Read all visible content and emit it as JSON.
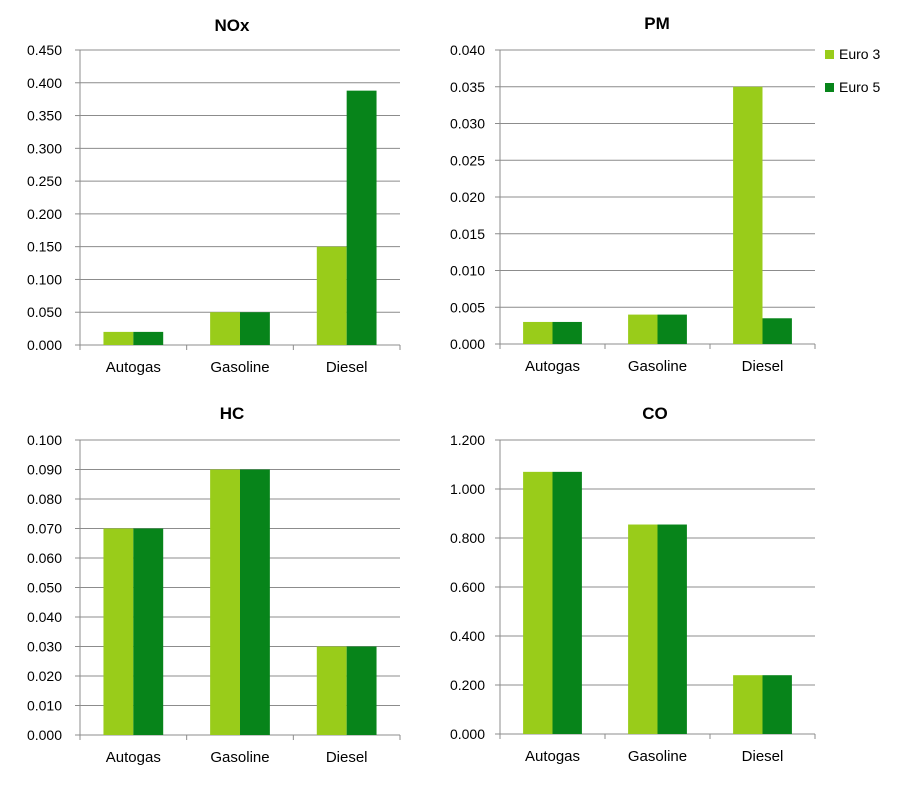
{
  "legend": {
    "position": "top-right",
    "items": [
      {
        "name": "Euro 3",
        "color": "#99cc1a"
      },
      {
        "name": "Euro 5",
        "color": "#07841a"
      }
    ]
  },
  "chart_data": [
    {
      "type": "bar",
      "title": "NOx",
      "categories": [
        "Autogas",
        "Gasoline",
        "Diesel"
      ],
      "series": [
        {
          "name": "Euro 3",
          "values": [
            0.02,
            0.05,
            0.15
          ]
        },
        {
          "name": "Euro 5",
          "values": [
            0.02,
            0.05,
            0.388
          ]
        }
      ],
      "ylim": [
        0,
        0.45
      ],
      "yticks": [
        "0.000",
        "0.050",
        "0.100",
        "0.150",
        "0.200",
        "0.250",
        "0.300",
        "0.350",
        "0.400",
        "0.450"
      ],
      "grid": true
    },
    {
      "type": "bar",
      "title": "PM",
      "categories": [
        "Autogas",
        "Gasoline",
        "Diesel"
      ],
      "series": [
        {
          "name": "Euro 3",
          "values": [
            0.003,
            0.004,
            0.035
          ]
        },
        {
          "name": "Euro 5",
          "values": [
            0.003,
            0.004,
            0.0035
          ]
        }
      ],
      "ylim": [
        0,
        0.04
      ],
      "yticks": [
        "0.000",
        "0.005",
        "0.010",
        "0.015",
        "0.020",
        "0.025",
        "0.030",
        "0.035",
        "0.040"
      ],
      "grid": true
    },
    {
      "type": "bar",
      "title": "HC",
      "categories": [
        "Autogas",
        "Gasoline",
        "Diesel"
      ],
      "series": [
        {
          "name": "Euro 3",
          "values": [
            0.07,
            0.09,
            0.03
          ]
        },
        {
          "name": "Euro 5",
          "values": [
            0.07,
            0.09,
            0.03
          ]
        }
      ],
      "ylim": [
        0,
        0.1
      ],
      "yticks": [
        "0.000",
        "0.010",
        "0.020",
        "0.030",
        "0.040",
        "0.050",
        "0.060",
        "0.070",
        "0.080",
        "0.090",
        "0.100"
      ],
      "grid": true
    },
    {
      "type": "bar",
      "title": "CO",
      "categories": [
        "Autogas",
        "Gasoline",
        "Diesel"
      ],
      "series": [
        {
          "name": "Euro 3",
          "values": [
            1.07,
            0.855,
            0.24
          ]
        },
        {
          "name": "Euro 5",
          "values": [
            1.07,
            0.855,
            0.24
          ]
        }
      ],
      "ylim": [
        0,
        1.2
      ],
      "yticks": [
        "0.000",
        "0.200",
        "0.400",
        "0.600",
        "0.800",
        "1.000",
        "1.200"
      ],
      "grid": true
    }
  ]
}
